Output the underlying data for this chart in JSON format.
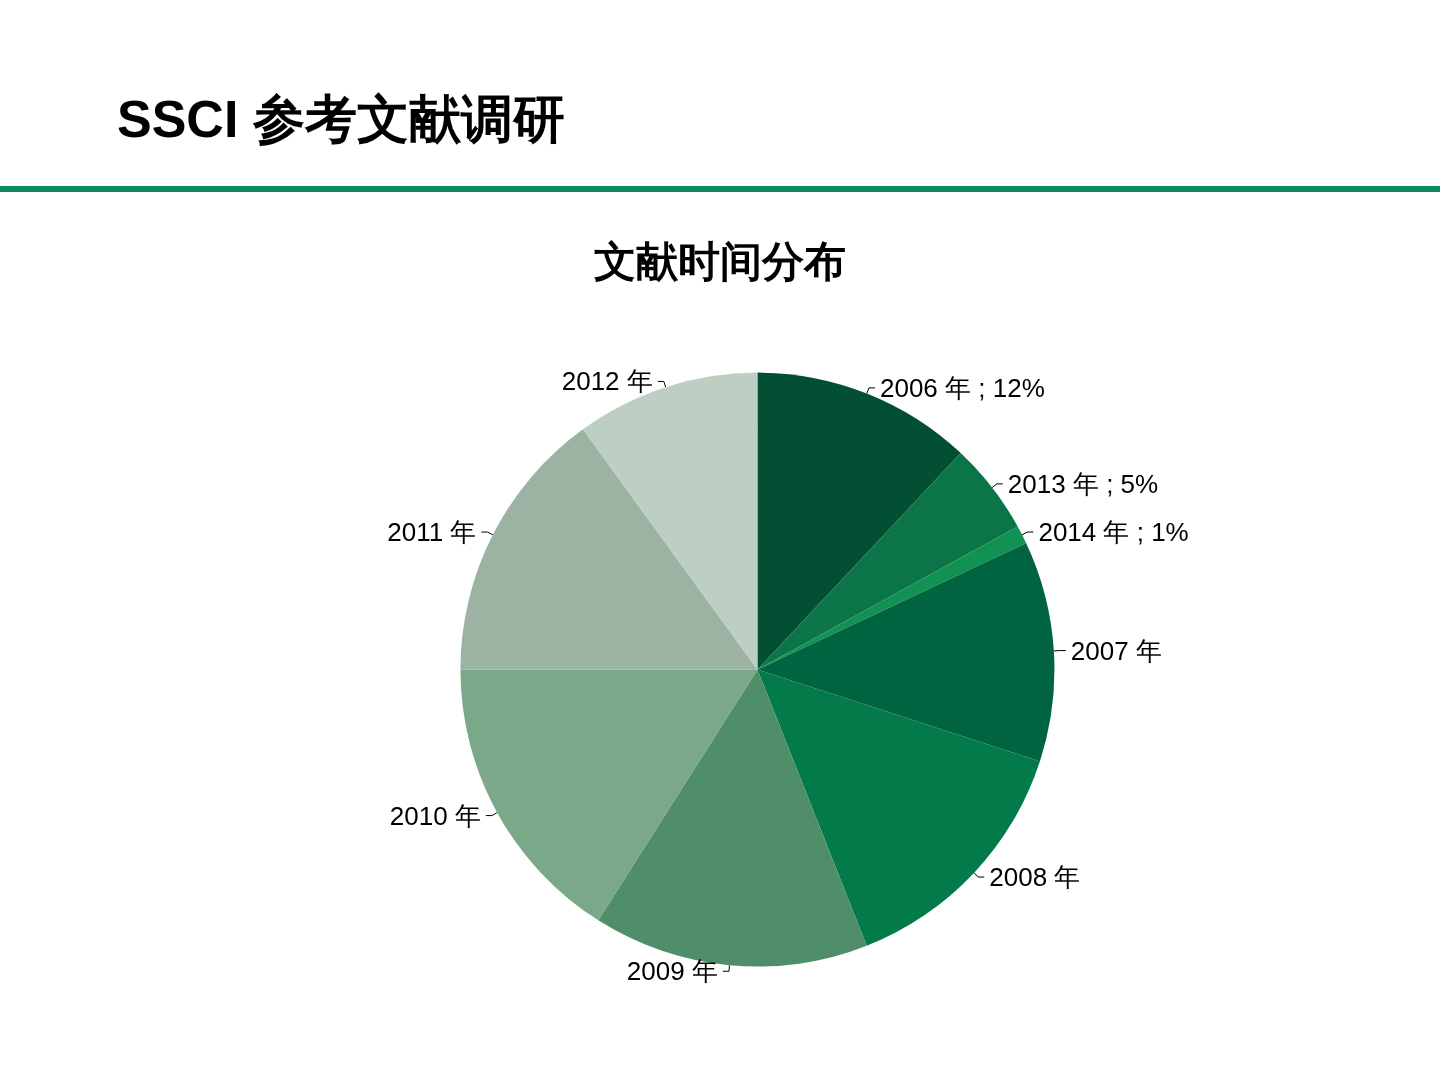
{
  "chart_data": {
    "type": "pie",
    "title": "SSCI 参考文献调研",
    "subtitle": "文献时间分布",
    "categories": [
      "2006 年",
      "2013 年",
      "2014 年",
      "2007 年",
      "2008 年",
      "2009 年",
      "2010 年",
      "2011 年",
      "2012 年"
    ],
    "values": [
      12,
      5,
      1,
      12,
      14,
      15,
      16,
      15,
      10
    ],
    "value_labels": [
      "12%",
      "5%",
      "1%",
      null,
      null,
      null,
      null,
      null,
      null
    ],
    "colors": [
      "#024f33",
      "#0b7547",
      "#129252",
      "#006440",
      "#037a4a",
      "#4f8e68",
      "#7aa888",
      "#9cb3a3",
      "#bccfc2"
    ],
    "legend": false
  }
}
